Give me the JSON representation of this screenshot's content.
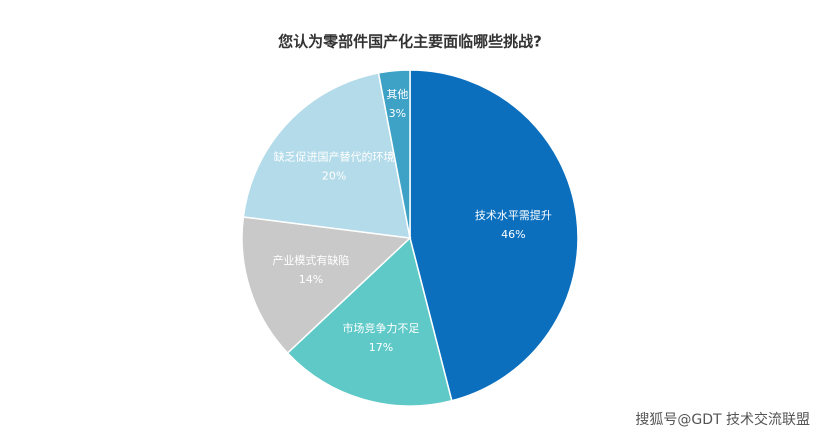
{
  "chart_data": {
    "type": "pie",
    "title": "您认为零部件国产化主要面临哪些挑战?",
    "categories": [
      "技术水平需提升",
      "市场竞争力不足",
      "产业模式有缺陷",
      "缺乏促进国产替代的环境",
      "其他"
    ],
    "values": [
      46,
      17,
      14,
      20,
      3
    ],
    "value_labels": [
      "46%",
      "17%",
      "14%",
      "20%",
      "3%"
    ],
    "colors": [
      "#0b6fbe",
      "#5ec9c7",
      "#c9c9c9",
      "#b4dbe9",
      "#3da2c6"
    ],
    "start_angle": 90,
    "direction": "clockwise",
    "watermark": "搜狐号@GDT 技术交流联盟"
  }
}
